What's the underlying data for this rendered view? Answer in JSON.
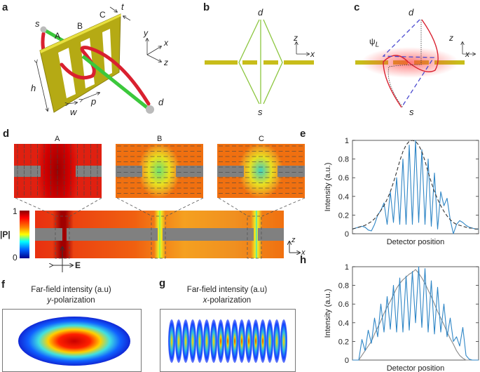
{
  "panels": {
    "a": {
      "label": "a",
      "s": "s",
      "d": "d",
      "A": "A",
      "B": "B",
      "C": "C",
      "t": "t",
      "h": "h",
      "w": "w",
      "p": "p",
      "axis_y": "y",
      "axis_x": "x",
      "axis_z": "z"
    },
    "b": {
      "label": "b",
      "d": "d",
      "s": "s",
      "axis_z": "z",
      "axis_x": "x"
    },
    "c": {
      "label": "c",
      "d": "d",
      "s": "s",
      "psi": "ψ",
      "psi_sub": "L",
      "axis_z": "z",
      "axis_x": "x"
    },
    "d": {
      "label": "d",
      "inset_labels": [
        "A",
        "B",
        "C"
      ],
      "colorbar_max": "1",
      "colorbar_min": "0",
      "colorbar_label": "|P|",
      "field_label": "E",
      "axis_z": "z",
      "axis_x": "x"
    },
    "f": {
      "label": "f",
      "title_line1": "Far-field intensity (a.u)",
      "title_line2_italic": "y",
      "title_line2_rest": "-polarization"
    },
    "g": {
      "label": "g",
      "title_line1": "Far-field intensity (a.u)",
      "title_line2_italic": "x",
      "title_line2_rest": "-polarization"
    }
  },
  "colors": {
    "plate": "#c8bd1a",
    "green_path": "#8cc63f",
    "red_path": "#d9202f",
    "blue_dash": "#4a4ad0",
    "curve_blue": "#2f86c6",
    "curve_gray": "#8a8a8a",
    "dashed_black": "#333333"
  },
  "chart_data": [
    {
      "panel": "e",
      "type": "line",
      "label": "e",
      "xlabel": "Detector position",
      "ylabel": "Intensity (a.u.)",
      "ylim": [
        0,
        1
      ],
      "yticks": [
        "0",
        "0.2",
        "0.4",
        "0.6",
        "0.8",
        "1"
      ],
      "series": [
        {
          "style": "solid",
          "color": "#2f86c6",
          "values": [
            0.05,
            0.06,
            0.07,
            0.08,
            0.07,
            0.04,
            0.03,
            0.1,
            0.2,
            0.25,
            0.33,
            0.1,
            0.45,
            0.12,
            0.6,
            0.1,
            0.8,
            0.1,
            0.95,
            0.1,
            1.0,
            0.12,
            0.9,
            0.1,
            0.8,
            0.08,
            0.65,
            0.05,
            0.45,
            0.3,
            0.38,
            0.15,
            0.0,
            0.1,
            0.14,
            0.12,
            0.09,
            0.07,
            0.06,
            0.05,
            0.05
          ]
        },
        {
          "style": "dashed",
          "color": "#333333",
          "values": [
            0.05,
            0.06,
            0.07,
            0.08,
            0.09,
            0.11,
            0.13,
            0.16,
            0.2,
            0.25,
            0.3,
            0.37,
            0.45,
            0.55,
            0.66,
            0.78,
            0.88,
            0.95,
            0.99,
            1.0,
            0.99,
            0.95,
            0.88,
            0.78,
            0.66,
            0.55,
            0.45,
            0.37,
            0.3,
            0.24,
            0.19,
            0.15,
            0.12,
            0.1,
            0.09,
            0.08,
            0.07,
            0.06,
            0.06,
            0.05,
            0.05
          ]
        }
      ]
    },
    {
      "panel": "h",
      "type": "line",
      "label": "h",
      "xlabel": "Detector position",
      "ylabel": "Intensity (a.u.)",
      "ylim": [
        0,
        1
      ],
      "yticks": [
        "0",
        "0.2",
        "0.4",
        "0.6",
        "0.8",
        "1"
      ],
      "series": [
        {
          "style": "solid",
          "color": "#8a8a8a",
          "values": [
            0,
            0,
            0,
            0.05,
            0.1,
            0.15,
            0.2,
            0.28,
            0.35,
            0.42,
            0.5,
            0.57,
            0.63,
            0.7,
            0.77,
            0.82,
            0.86,
            0.89,
            0.92,
            0.94,
            0.97,
            0.93,
            0.88,
            0.82,
            0.75,
            0.68,
            0.6,
            0.52,
            0.45,
            0.38,
            0.3,
            0.23,
            0.17,
            0.1,
            0.05,
            0.02,
            0,
            0,
            0,
            0,
            0
          ]
        },
        {
          "style": "solid",
          "color": "#2f86c6",
          "values": [
            0,
            0,
            0,
            0.22,
            0.1,
            0.32,
            0.18,
            0.45,
            0.25,
            0.6,
            0.3,
            0.68,
            0.33,
            0.8,
            0.3,
            0.88,
            0.3,
            0.9,
            0.32,
            0.95,
            0.4,
            1.0,
            0.35,
            0.98,
            0.3,
            0.85,
            0.28,
            0.78,
            0.3,
            0.6,
            0.25,
            0.45,
            0.2,
            0.25,
            0.15,
            0.35,
            0.05,
            0.01,
            0,
            0,
            0
          ]
        }
      ]
    }
  ]
}
